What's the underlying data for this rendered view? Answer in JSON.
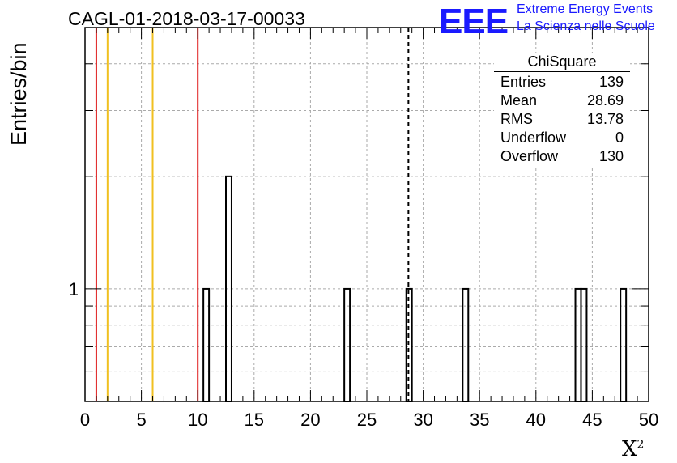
{
  "chart_data": {
    "type": "bar",
    "title": "CAGL-01-2018-03-17-00033",
    "xlabel": "X",
    "xlabel_sup": "2",
    "ylabel": "Entries/bin",
    "xlim": [
      0,
      50
    ],
    "ylim": [
      0.5,
      5
    ],
    "y_scale": "log",
    "grid": true,
    "x_ticks": [
      "0",
      "5",
      "10",
      "15",
      "20",
      "25",
      "30",
      "35",
      "40",
      "45",
      "50"
    ],
    "y_tick_labels": [
      "1"
    ],
    "bin_width": 0.5,
    "bins": [
      {
        "x": 10.5,
        "value": 1
      },
      {
        "x": 12.5,
        "value": 2
      },
      {
        "x": 23.0,
        "value": 1
      },
      {
        "x": 28.5,
        "value": 1
      },
      {
        "x": 33.5,
        "value": 1
      },
      {
        "x": 43.5,
        "value": 1
      },
      {
        "x": 44.0,
        "value": 1
      },
      {
        "x": 47.5,
        "value": 1
      }
    ],
    "reference_lines": [
      {
        "x": 1,
        "color": "#e02020"
      },
      {
        "x": 2,
        "color": "#f0c020"
      },
      {
        "x": 6,
        "color": "#f0c020"
      },
      {
        "x": 10,
        "color": "#e02020"
      }
    ],
    "mean_line": {
      "x": 28.69,
      "style": "dashed"
    },
    "stats_box": {
      "title": "ChiSquare",
      "rows": [
        {
          "label": "Entries",
          "value": "139"
        },
        {
          "label": "Mean",
          "value": "28.69"
        },
        {
          "label": "RMS",
          "value": "13.78"
        },
        {
          "label": "Underflow",
          "value": "0"
        },
        {
          "label": "Overflow",
          "value": "130"
        }
      ]
    }
  },
  "logo": {
    "mark": "EEE",
    "line1": "Extreme Energy Events",
    "line2": "La Scienza nelle Scuole"
  }
}
